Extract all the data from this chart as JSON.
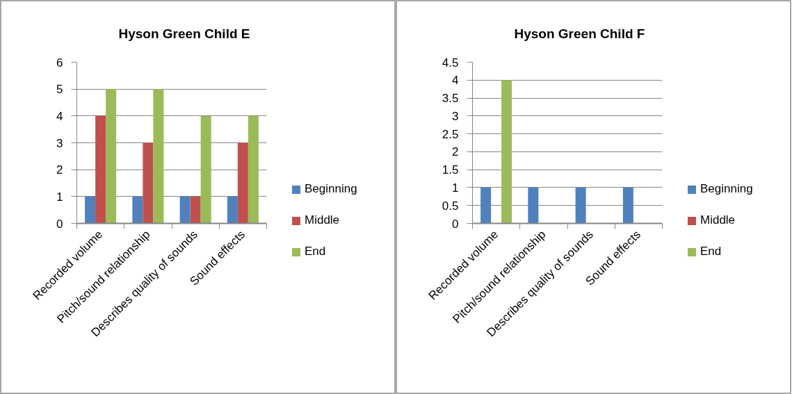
{
  "chart_data": [
    {
      "type": "bar",
      "title": "Hyson Green Child  E",
      "categories": [
        "Recorded volume",
        "Pitch/sound relationship",
        "Describes quality of sounds",
        "Sound effects"
      ],
      "series": [
        {
          "name": "Beginning",
          "color": "#4f81bd",
          "values": [
            1,
            1,
            1,
            1
          ]
        },
        {
          "name": "Middle",
          "color": "#c0504d",
          "values": [
            4,
            3,
            1,
            3
          ]
        },
        {
          "name": "End",
          "color": "#9bbb59",
          "values": [
            5,
            5,
            4,
            4
          ]
        }
      ],
      "ylim": [
        0,
        6
      ],
      "yticks": [
        0,
        1,
        2,
        3,
        4,
        5,
        6
      ],
      "grid": "y",
      "legend": "right"
    },
    {
      "type": "bar",
      "title": "Hyson Green Child F",
      "categories": [
        "Recorded volume",
        "Pitch/sound relationship",
        "Describes quality of sounds",
        "Sound effects"
      ],
      "series": [
        {
          "name": "Beginning",
          "color": "#4f81bd",
          "values": [
            1,
            1,
            1,
            1
          ]
        },
        {
          "name": "Middle",
          "color": "#c0504d",
          "values": [
            null,
            null,
            null,
            null
          ]
        },
        {
          "name": "End",
          "color": "#9bbb59",
          "values": [
            4,
            null,
            null,
            null
          ]
        }
      ],
      "ylim": [
        0,
        4.5
      ],
      "yticks": [
        0,
        0.5,
        1,
        1.5,
        2,
        2.5,
        3,
        3.5,
        4,
        4.5
      ],
      "grid": "y",
      "legend": "right"
    }
  ]
}
